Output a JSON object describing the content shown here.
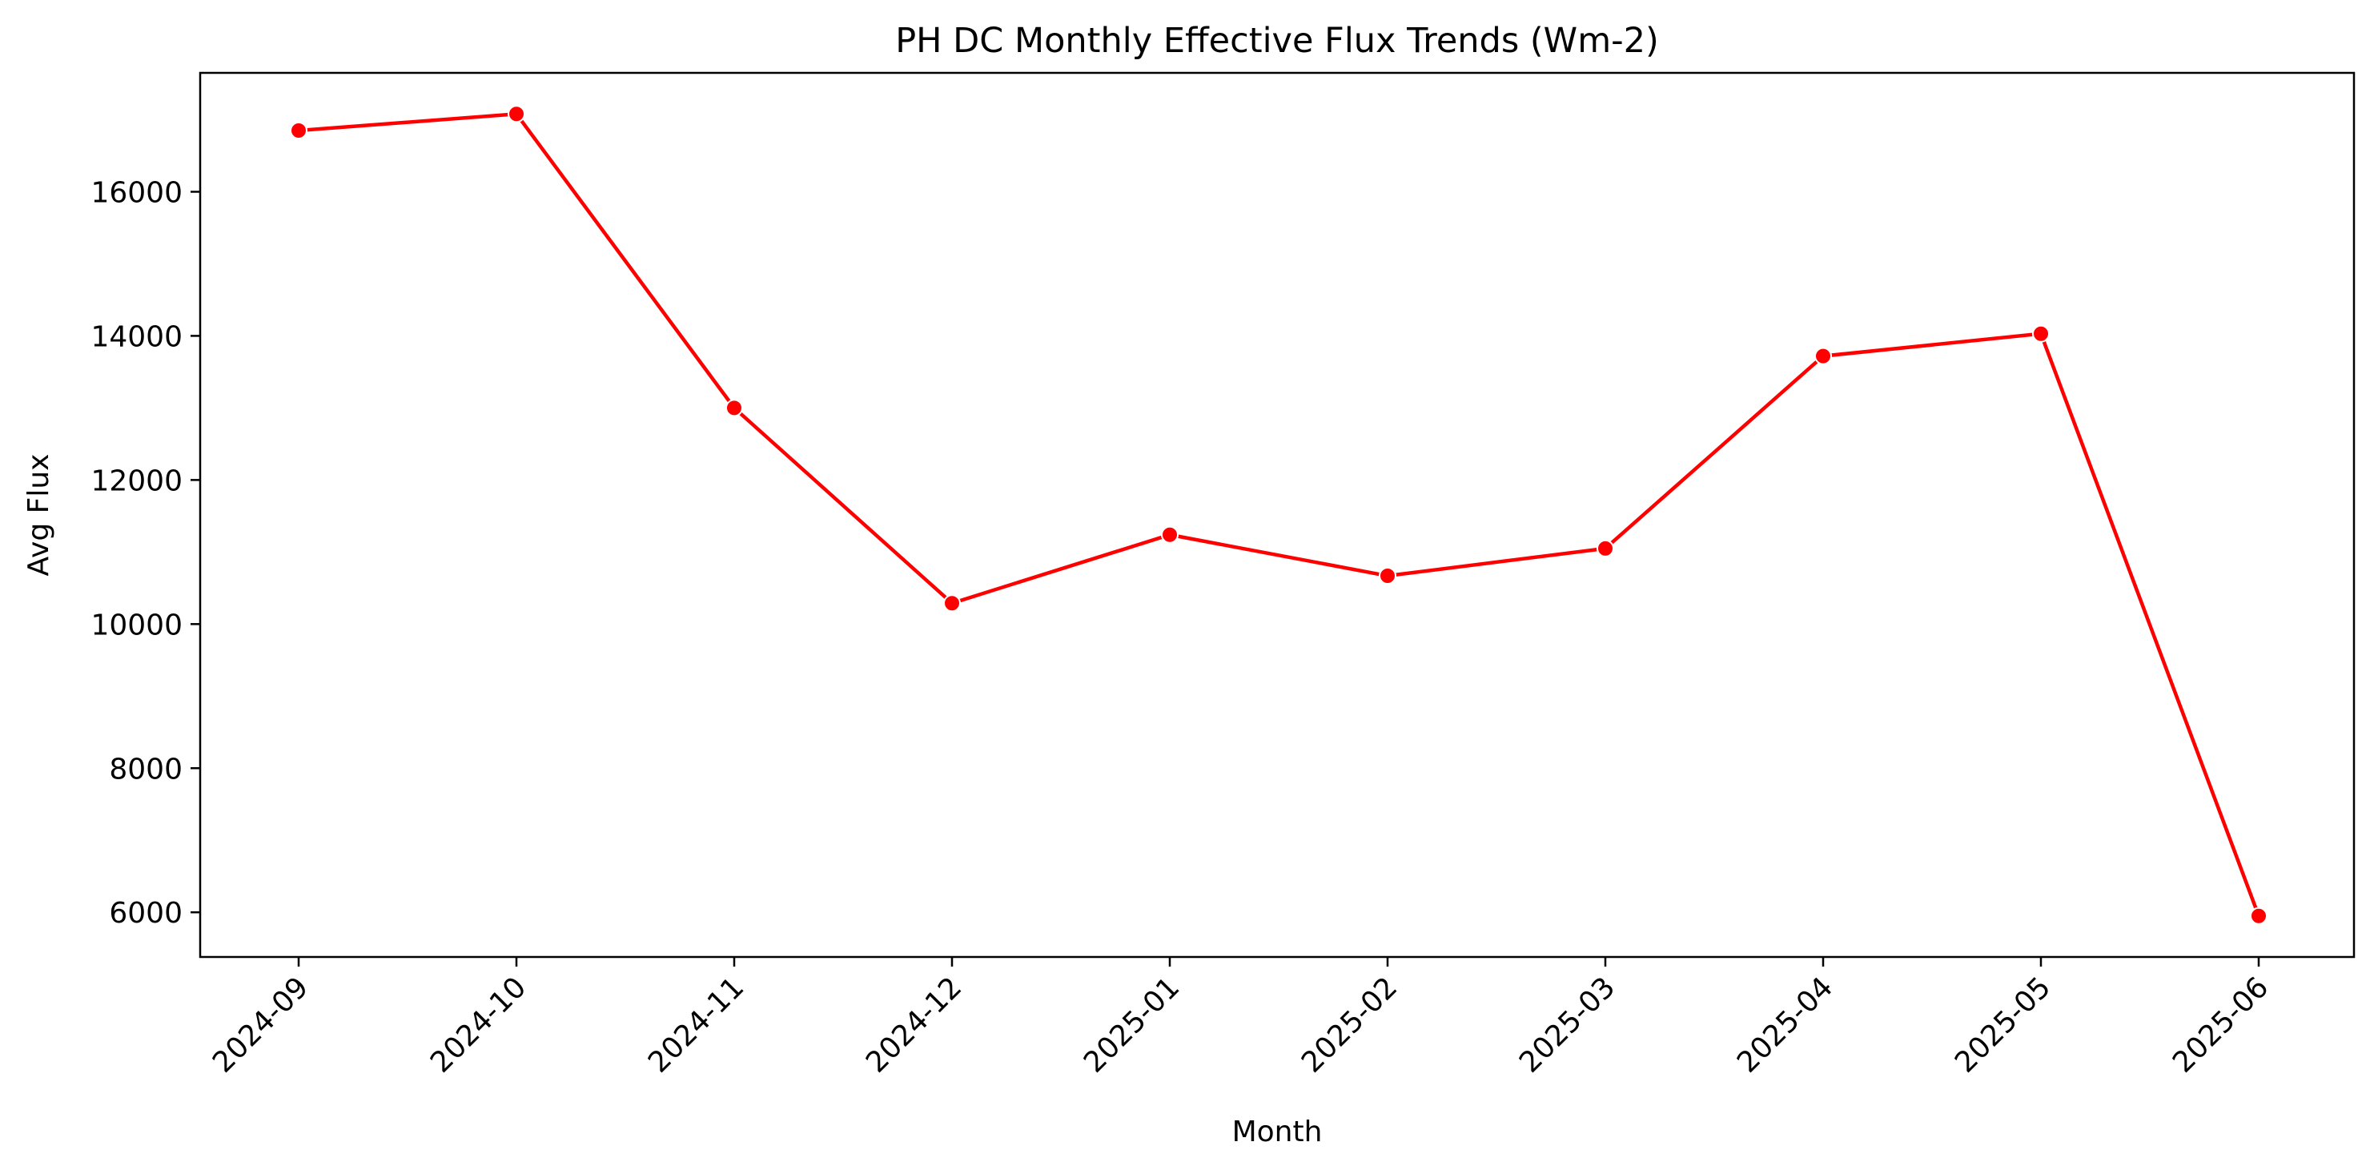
{
  "chart_data": {
    "type": "line",
    "title": "PH DC Monthly Effective Flux Trends (Wm-2)",
    "xlabel": "Month",
    "ylabel": "Avg Flux",
    "categories": [
      "2024-09",
      "2024-10",
      "2024-11",
      "2024-12",
      "2025-01",
      "2025-02",
      "2025-03",
      "2025-04",
      "2025-05",
      "2025-06"
    ],
    "series": [
      {
        "values": [
          16850,
          17080,
          13000,
          10290,
          11240,
          10670,
          11050,
          13720,
          14030,
          5950
        ],
        "color": "#ff0000"
      }
    ],
    "yticks": [
      6000,
      8000,
      10000,
      12000,
      14000,
      16000
    ],
    "ylim": [
      5380,
      17650
    ],
    "grid": false,
    "legend": "none"
  }
}
